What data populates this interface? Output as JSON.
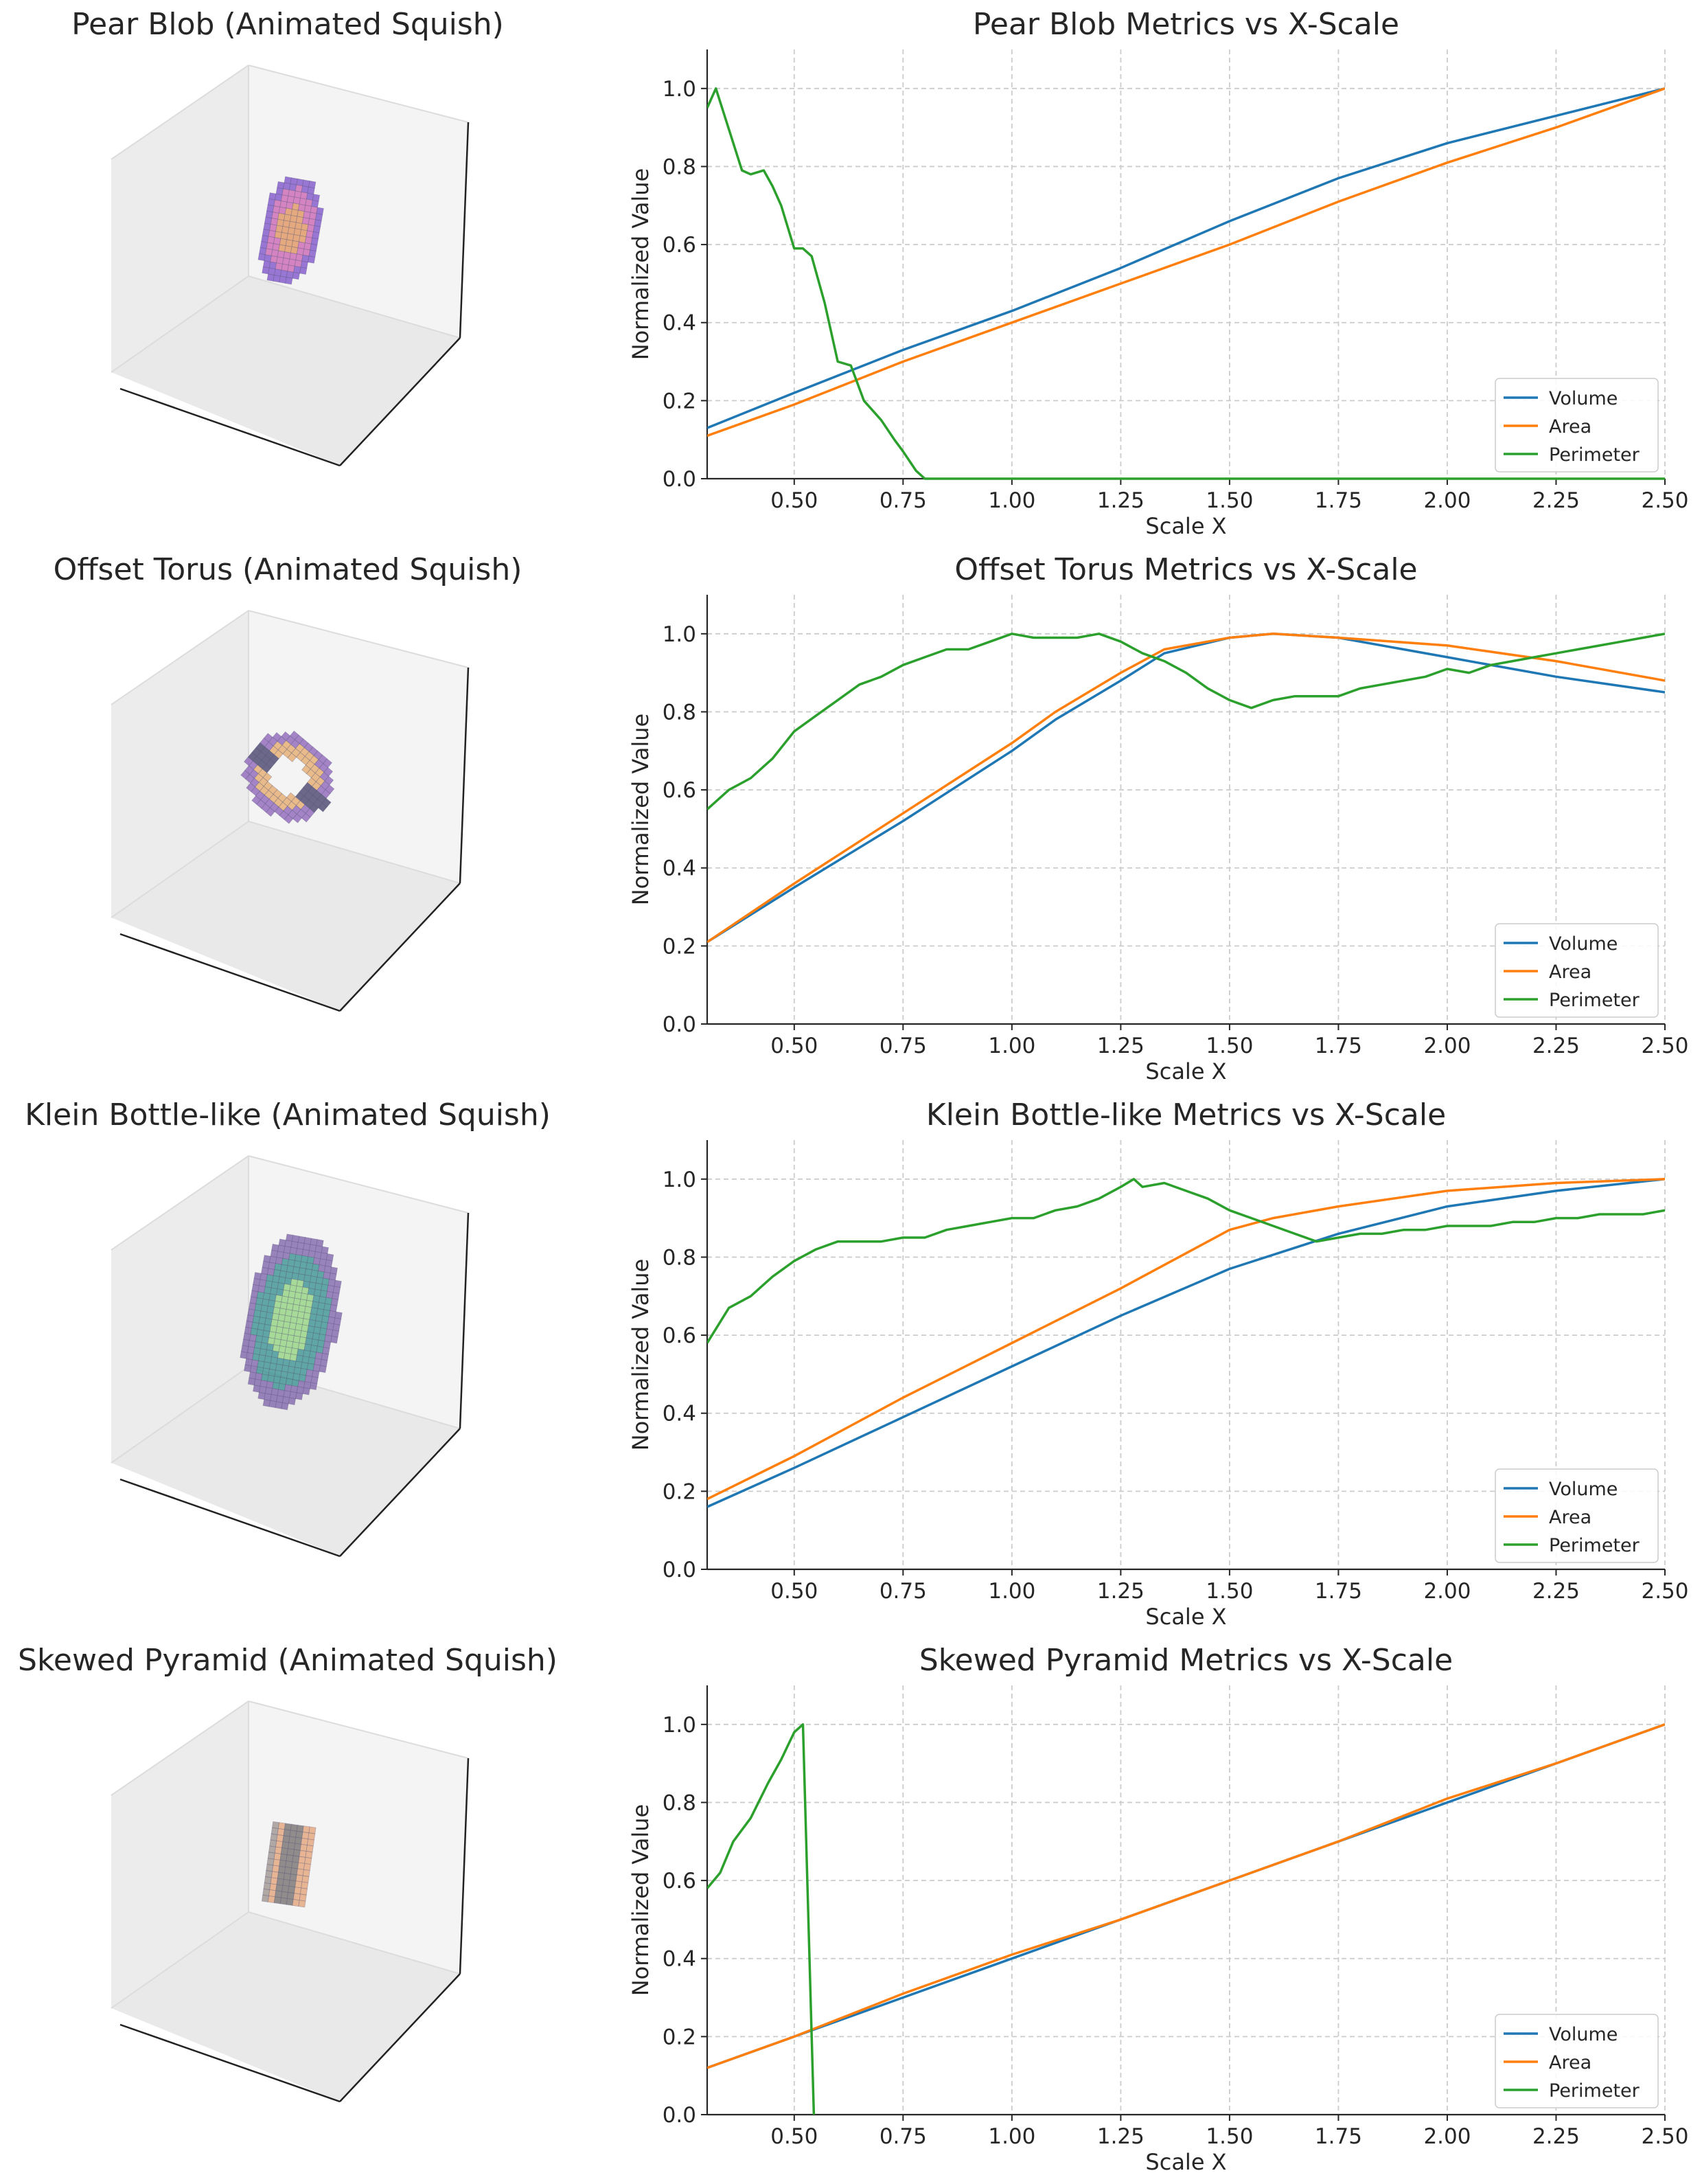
{
  "colors": {
    "volume": "#1f77b4",
    "area": "#ff7f0e",
    "perimeter": "#2ca02c",
    "grid": "#cccccc",
    "text": "#262626"
  },
  "common": {
    "xlabel": "Scale X",
    "ylabel": "Normalized Value",
    "xlim": [
      0.3,
      2.5
    ],
    "ylim": [
      0.0,
      1.1
    ],
    "xticks": [
      "0.50",
      "0.75",
      "1.00",
      "1.25",
      "1.50",
      "1.75",
      "2.00",
      "2.25",
      "2.50"
    ],
    "yticks": [
      "0.0",
      "0.2",
      "0.4",
      "0.6",
      "0.8",
      "1.0"
    ],
    "legend": [
      "Volume",
      "Area",
      "Perimeter"
    ],
    "legend_position": "lower-right",
    "grid": true
  },
  "panels": [
    {
      "title3d": "Pear Blob (Animated Squish)",
      "title": "Pear Blob Metrics vs X-Scale",
      "palette": [
        "#7a4cc9",
        "#c85fb0",
        "#e0905a"
      ],
      "shape": "ellipse",
      "rx": 0.55,
      "ry": 1.0,
      "tilt": 10
    },
    {
      "title3d": "Offset Torus (Animated Squish)",
      "title": "Offset Torus Metrics vs X-Scale",
      "palette": [
        "#8a5fb8",
        "#e5a868",
        "#3d3a66"
      ],
      "shape": "torus",
      "rx": 0.85,
      "ry": 0.75,
      "tilt": 40
    },
    {
      "title3d": "Klein Bottle-like (Animated Squish)",
      "title": "Klein Bottle-like Metrics vs X-Scale",
      "palette": [
        "#7b5ea8",
        "#2f8c8c",
        "#8ed17a"
      ],
      "shape": "ellipse",
      "rx": 0.85,
      "ry": 1.6,
      "tilt": 10
    },
    {
      "title3d": "Skewed Pyramid (Animated Squish)",
      "title": "Skewed Pyramid Metrics vs X-Scale",
      "palette": [
        "#9a8f8a",
        "#e3a074",
        "#6f6a6a"
      ],
      "shape": "rect",
      "rx": 0.38,
      "ry": 0.7,
      "tilt": 8
    }
  ],
  "chart_data": [
    {
      "type": "line",
      "title": "Pear Blob Metrics vs X-Scale",
      "xlabel": "Scale X",
      "ylabel": "Normalized Value",
      "xlim": [
        0.3,
        2.5
      ],
      "ylim": [
        0.0,
        1.1
      ],
      "series": [
        {
          "name": "Volume",
          "x": [
            0.3,
            0.5,
            0.75,
            1.0,
            1.25,
            1.5,
            1.75,
            2.0,
            2.25,
            2.5
          ],
          "y": [
            0.13,
            0.22,
            0.33,
            0.43,
            0.54,
            0.66,
            0.77,
            0.86,
            0.93,
            1.0
          ]
        },
        {
          "name": "Area",
          "x": [
            0.3,
            0.5,
            0.75,
            1.0,
            1.25,
            1.5,
            1.75,
            2.0,
            2.25,
            2.5
          ],
          "y": [
            0.11,
            0.19,
            0.3,
            0.4,
            0.5,
            0.6,
            0.71,
            0.81,
            0.9,
            1.0
          ]
        },
        {
          "name": "Perimeter",
          "x": [
            0.3,
            0.32,
            0.34,
            0.38,
            0.4,
            0.43,
            0.45,
            0.47,
            0.5,
            0.52,
            0.54,
            0.57,
            0.6,
            0.63,
            0.66,
            0.7,
            0.73,
            0.75,
            0.78,
            0.8,
            0.82,
            1.0,
            1.5,
            2.0,
            2.5
          ],
          "y": [
            0.95,
            1.0,
            0.93,
            0.79,
            0.78,
            0.79,
            0.75,
            0.7,
            0.59,
            0.59,
            0.57,
            0.45,
            0.3,
            0.29,
            0.2,
            0.15,
            0.1,
            0.07,
            0.02,
            0.0,
            0.0,
            0.0,
            0.0,
            0.0,
            0.0
          ]
        }
      ]
    },
    {
      "type": "line",
      "title": "Offset Torus Metrics vs X-Scale",
      "xlabel": "Scale X",
      "ylabel": "Normalized Value",
      "xlim": [
        0.3,
        2.5
      ],
      "ylim": [
        0.0,
        1.1
      ],
      "series": [
        {
          "name": "Volume",
          "x": [
            0.3,
            0.5,
            0.75,
            1.0,
            1.1,
            1.25,
            1.35,
            1.5,
            1.6,
            1.75,
            2.0,
            2.25,
            2.5
          ],
          "y": [
            0.21,
            0.35,
            0.52,
            0.7,
            0.78,
            0.88,
            0.95,
            0.99,
            1.0,
            0.99,
            0.94,
            0.89,
            0.85
          ]
        },
        {
          "name": "Area",
          "x": [
            0.3,
            0.5,
            0.75,
            1.0,
            1.1,
            1.25,
            1.35,
            1.5,
            1.6,
            1.75,
            2.0,
            2.25,
            2.5
          ],
          "y": [
            0.21,
            0.36,
            0.54,
            0.72,
            0.8,
            0.9,
            0.96,
            0.99,
            1.0,
            0.99,
            0.97,
            0.93,
            0.88
          ]
        },
        {
          "name": "Perimeter",
          "x": [
            0.3,
            0.35,
            0.4,
            0.45,
            0.5,
            0.55,
            0.6,
            0.65,
            0.7,
            0.75,
            0.8,
            0.85,
            0.9,
            0.95,
            1.0,
            1.05,
            1.1,
            1.15,
            1.2,
            1.25,
            1.3,
            1.35,
            1.4,
            1.45,
            1.5,
            1.55,
            1.6,
            1.65,
            1.7,
            1.75,
            1.8,
            1.85,
            1.9,
            1.95,
            2.0,
            2.05,
            2.1,
            2.15,
            2.2,
            2.25,
            2.3,
            2.35,
            2.4,
            2.45,
            2.5
          ],
          "y": [
            0.55,
            0.6,
            0.63,
            0.68,
            0.75,
            0.79,
            0.83,
            0.87,
            0.89,
            0.92,
            0.94,
            0.96,
            0.96,
            0.98,
            1.0,
            0.99,
            0.99,
            0.99,
            1.0,
            0.98,
            0.95,
            0.93,
            0.9,
            0.86,
            0.83,
            0.81,
            0.83,
            0.84,
            0.84,
            0.84,
            0.86,
            0.87,
            0.88,
            0.89,
            0.91,
            0.9,
            0.92,
            0.93,
            0.94,
            0.95,
            0.96,
            0.97,
            0.98,
            0.99,
            1.0
          ]
        }
      ]
    },
    {
      "type": "line",
      "title": "Klein Bottle-like Metrics vs X-Scale",
      "xlabel": "Scale X",
      "ylabel": "Normalized Value",
      "xlim": [
        0.3,
        2.5
      ],
      "ylim": [
        0.0,
        1.1
      ],
      "series": [
        {
          "name": "Volume",
          "x": [
            0.3,
            0.5,
            0.75,
            1.0,
            1.25,
            1.5,
            1.75,
            2.0,
            2.25,
            2.5
          ],
          "y": [
            0.16,
            0.26,
            0.39,
            0.52,
            0.65,
            0.77,
            0.86,
            0.93,
            0.97,
            1.0
          ]
        },
        {
          "name": "Area",
          "x": [
            0.3,
            0.5,
            0.75,
            1.0,
            1.25,
            1.5,
            1.6,
            1.75,
            2.0,
            2.25,
            2.5
          ],
          "y": [
            0.18,
            0.29,
            0.44,
            0.58,
            0.72,
            0.87,
            0.9,
            0.93,
            0.97,
            0.99,
            1.0
          ]
        },
        {
          "name": "Perimeter",
          "x": [
            0.3,
            0.35,
            0.4,
            0.45,
            0.5,
            0.55,
            0.6,
            0.65,
            0.7,
            0.75,
            0.8,
            0.85,
            0.9,
            0.95,
            1.0,
            1.05,
            1.1,
            1.15,
            1.2,
            1.25,
            1.28,
            1.3,
            1.35,
            1.4,
            1.45,
            1.5,
            1.55,
            1.6,
            1.65,
            1.7,
            1.75,
            1.8,
            1.85,
            1.9,
            1.95,
            2.0,
            2.05,
            2.1,
            2.15,
            2.2,
            2.25,
            2.3,
            2.35,
            2.4,
            2.45,
            2.5
          ],
          "y": [
            0.58,
            0.67,
            0.7,
            0.75,
            0.79,
            0.82,
            0.84,
            0.84,
            0.84,
            0.85,
            0.85,
            0.87,
            0.88,
            0.89,
            0.9,
            0.9,
            0.92,
            0.93,
            0.95,
            0.98,
            1.0,
            0.98,
            0.99,
            0.97,
            0.95,
            0.92,
            0.9,
            0.88,
            0.86,
            0.84,
            0.85,
            0.86,
            0.86,
            0.87,
            0.87,
            0.88,
            0.88,
            0.88,
            0.89,
            0.89,
            0.9,
            0.9,
            0.91,
            0.91,
            0.91,
            0.92
          ]
        }
      ]
    },
    {
      "type": "line",
      "title": "Skewed Pyramid Metrics vs X-Scale",
      "xlabel": "Scale X",
      "ylabel": "Normalized Value",
      "xlim": [
        0.3,
        2.5
      ],
      "ylim": [
        0.0,
        1.1
      ],
      "series": [
        {
          "name": "Volume",
          "x": [
            0.3,
            0.5,
            0.75,
            1.0,
            1.25,
            1.5,
            1.75,
            2.0,
            2.25,
            2.5
          ],
          "y": [
            0.12,
            0.2,
            0.3,
            0.4,
            0.5,
            0.6,
            0.7,
            0.8,
            0.9,
            1.0
          ]
        },
        {
          "name": "Area",
          "x": [
            0.3,
            0.5,
            0.75,
            1.0,
            1.25,
            1.5,
            1.75,
            2.0,
            2.25,
            2.5
          ],
          "y": [
            0.12,
            0.2,
            0.31,
            0.41,
            0.5,
            0.6,
            0.7,
            0.81,
            0.9,
            1.0
          ]
        },
        {
          "name": "Perimeter",
          "x": [
            0.3,
            0.33,
            0.36,
            0.4,
            0.44,
            0.47,
            0.5,
            0.52,
            0.545
          ],
          "y": [
            0.58,
            0.62,
            0.7,
            0.76,
            0.85,
            0.91,
            0.98,
            1.0,
            0.0
          ]
        }
      ]
    }
  ]
}
